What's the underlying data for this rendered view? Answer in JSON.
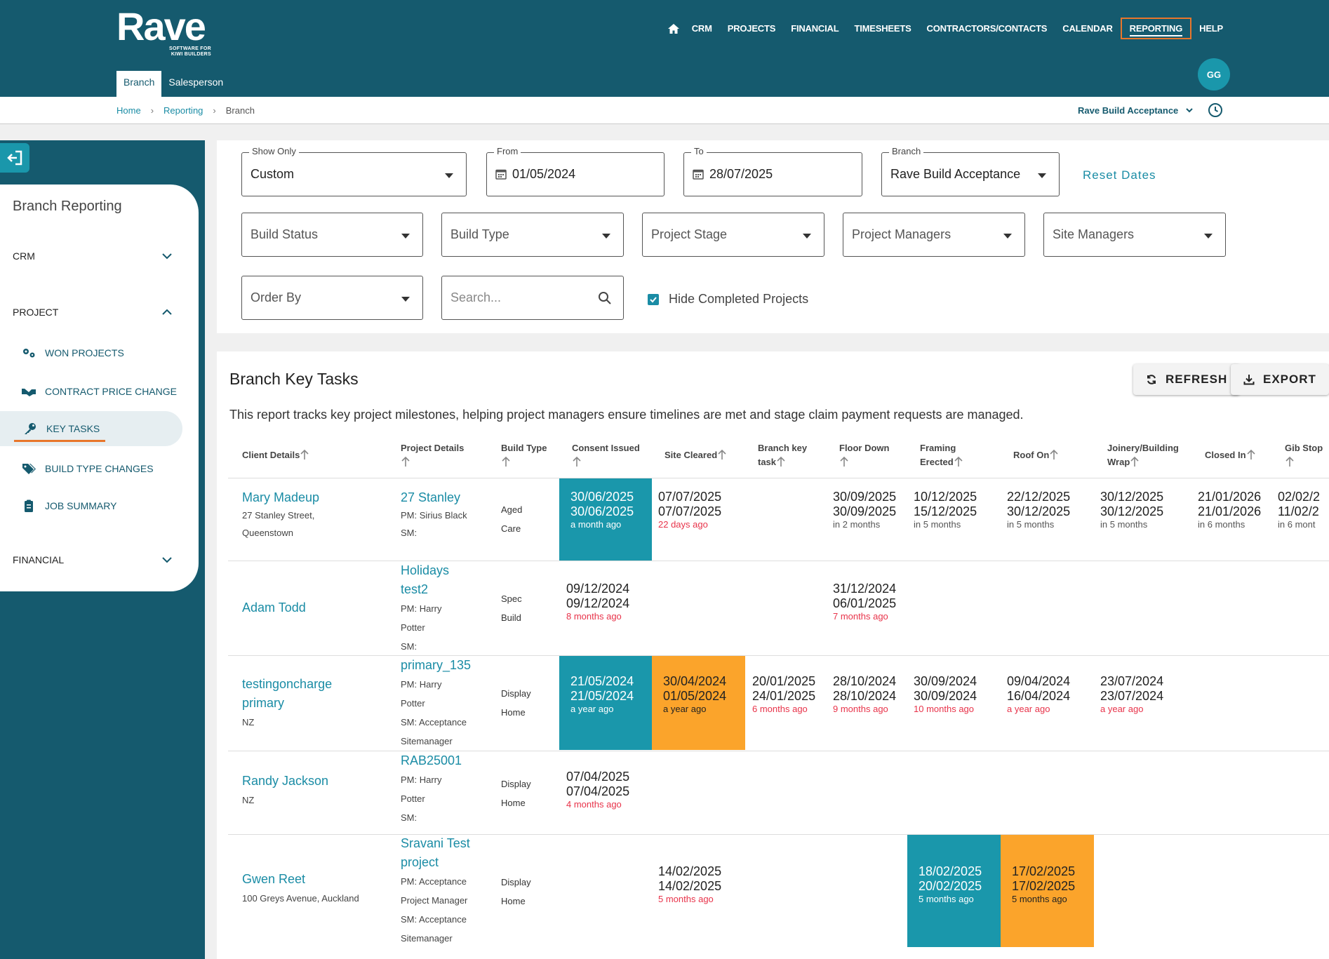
{
  "header": {
    "logo_word": "Rave",
    "logo_sub_1": "SOFTWARE FOR",
    "logo_sub_2": "KIWI BUILDERS",
    "nav": [
      "CRM",
      "PROJECTS",
      "FINANCIAL",
      "TIMESHEETS",
      "CONTRACTORS/CONTACTS",
      "CALENDAR",
      "REPORTING",
      "HELP"
    ],
    "active_nav": "REPORTING",
    "avatar": "GG",
    "subtabs": [
      "Branch",
      "Salesperson"
    ]
  },
  "breadcrumb": {
    "home": "Home",
    "reporting": "Reporting",
    "current": "Branch"
  },
  "branch_select": "Rave Build Acceptance",
  "sidebar": {
    "title": "Branch Reporting",
    "crm": "CRM",
    "project": "PROJECT",
    "financial": "FINANCIAL",
    "items": [
      "WON PROJECTS",
      "CONTRACT PRICE CHANGE",
      "KEY TASKS",
      "BUILD TYPE CHANGES",
      "JOB SUMMARY"
    ]
  },
  "filters": {
    "show_only_label": "Show Only",
    "show_only_value": "Custom",
    "from_label": "From",
    "from_value": "01/05/2024",
    "to_label": "To",
    "to_value": "28/07/2025",
    "branch_label": "Branch",
    "branch_value": "Rave Build Acceptance",
    "reset_dates": "Reset Dates",
    "build_status": "Build Status",
    "build_type": "Build Type",
    "project_stage": "Project Stage",
    "project_managers": "Project Managers",
    "site_managers": "Site Managers",
    "order_by": "Order By",
    "search_placeholder": "Search...",
    "hide_completed": "Hide Completed Projects"
  },
  "report": {
    "title": "Branch Key Tasks",
    "refresh": "REFRESH",
    "export": "EXPORT",
    "description": "This report tracks key project milestones, helping project managers ensure timelines are met and stage claim payment requests are managed.",
    "columns": {
      "client": "Client Details",
      "project": "Project Details",
      "build_type": "Build Type",
      "consent": "Consent Issued",
      "site_cleared": "Site Cleared",
      "branch_key_1": "Branch key",
      "branch_key_2": "task",
      "floor_down": "Floor Down",
      "framing_1": "Framing",
      "framing_2": "Erected",
      "roof_on": "Roof On",
      "joinery_1": "Joinery/Building",
      "joinery_2": "Wrap",
      "closed_in": "Closed In",
      "gib_stop": "Gib Stop"
    },
    "rows": [
      {
        "client_name": "Mary Madeup",
        "client_addr_1": "27 Stanley Street,",
        "client_addr_2": "Queenstown",
        "project_name_1": "27 Stanley",
        "project_name_2": "",
        "pm": "PM: Sirius Black",
        "sm": "SM:",
        "build_type_1": "Aged",
        "build_type_2": "Care",
        "consent": {
          "d1": "30/06/2025",
          "d2": "30/06/2025",
          "ago": "a month ago"
        },
        "site_cleared": {
          "d1": "07/07/2025",
          "d2": "07/07/2025",
          "ago": "22 days ago"
        },
        "floor_down": {
          "d1": "30/09/2025",
          "d2": "30/09/2025",
          "ago": "in 2 months"
        },
        "framing": {
          "d1": "10/12/2025",
          "d2": "15/12/2025",
          "ago": "in 5 months"
        },
        "roof_on": {
          "d1": "22/12/2025",
          "d2": "30/12/2025",
          "ago": "in 5 months"
        },
        "joinery": {
          "d1": "30/12/2025",
          "d2": "30/12/2025",
          "ago": "in 5 months"
        },
        "closed_in": {
          "d1": "21/01/2026",
          "d2": "21/01/2026",
          "ago": "in 6 months"
        },
        "gib_stop": {
          "d1": "02/02/2",
          "d2": "11/02/2",
          "ago": "in 6 mont"
        }
      },
      {
        "client_name": "Adam Todd",
        "project_name_1": "Holidays",
        "project_name_2": "test2",
        "pm_1": "PM: Harry",
        "pm_2": "Potter",
        "sm": "SM:",
        "build_type_1": "Spec",
        "build_type_2": "Build",
        "consent": {
          "d1": "09/12/2024",
          "d2": "09/12/2024",
          "ago": "8 months ago"
        },
        "floor_down": {
          "d1": "31/12/2024",
          "d2": "06/01/2025",
          "ago": "7 months ago"
        }
      },
      {
        "client_name_1": "testingoncharge",
        "client_name_2": "primary",
        "client_addr_1": "NZ",
        "project_name_1": "primary_135",
        "pm_1": "PM: Harry",
        "pm_2": "Potter",
        "sm_1": "SM: Acceptance",
        "sm_2": "Sitemanager",
        "build_type_1": "Display",
        "build_type_2": "Home",
        "consent": {
          "d1": "21/05/2024",
          "d2": "21/05/2024",
          "ago": "a year ago"
        },
        "site_cleared": {
          "d1": "30/04/2024",
          "d2": "01/05/2024",
          "ago": "a year ago"
        },
        "branch_key": {
          "d1": "20/01/2025",
          "d2": "24/01/2025",
          "ago": "6 months ago"
        },
        "floor_down": {
          "d1": "28/10/2024",
          "d2": "28/10/2024",
          "ago": "9 months ago"
        },
        "framing": {
          "d1": "30/09/2024",
          "d2": "30/09/2024",
          "ago": "10 months ago"
        },
        "roof_on": {
          "d1": "09/04/2024",
          "d2": "16/04/2024",
          "ago": "a year ago"
        },
        "joinery": {
          "d1": "23/07/2024",
          "d2": "23/07/2024",
          "ago": "a year ago"
        }
      },
      {
        "client_name": "Randy Jackson",
        "client_addr_1": "NZ",
        "project_name_1": "RAB25001",
        "pm_1": "PM: Harry",
        "pm_2": "Potter",
        "sm": "SM:",
        "build_type_1": "Display",
        "build_type_2": "Home",
        "consent": {
          "d1": "07/04/2025",
          "d2": "07/04/2025",
          "ago": "4 months ago"
        }
      },
      {
        "client_name": "Gwen Reet",
        "client_addr_1": "100 Greys Avenue, Auckland",
        "project_name_1": "Sravani Test",
        "project_name_2": "project",
        "pm_1": "PM: Acceptance",
        "pm_2": "Project Manager",
        "sm_1": "SM: Acceptance",
        "sm_2": "Sitemanager",
        "build_type_1": "Display",
        "build_type_2": "Home",
        "site_cleared": {
          "d1": "14/02/2025",
          "d2": "14/02/2025",
          "ago": "5 months ago"
        },
        "framing": {
          "d1": "18/02/2025",
          "d2": "20/02/2025",
          "ago": "5 months ago"
        },
        "roof_on": {
          "d1": "17/02/2025",
          "d2": "17/02/2025",
          "ago": "5 months ago"
        }
      }
    ]
  },
  "colors": {
    "header": "#155a6e",
    "teal": "#1a97ab",
    "orange": "#fba42b",
    "accent": "#e8762b",
    "link": "#1a8ca5",
    "overdue": "#e8334a"
  },
  "icons": [
    "home-icon",
    "clock-icon",
    "exit-icon",
    "gears-icon",
    "handshake-icon",
    "key-icon",
    "tags-icon",
    "clipboard-icon",
    "calendar-icon",
    "search-icon",
    "refresh-icon",
    "download-icon",
    "sort-arrow-icon",
    "chevron-down-icon",
    "chevron-up-icon",
    "check-icon"
  ]
}
